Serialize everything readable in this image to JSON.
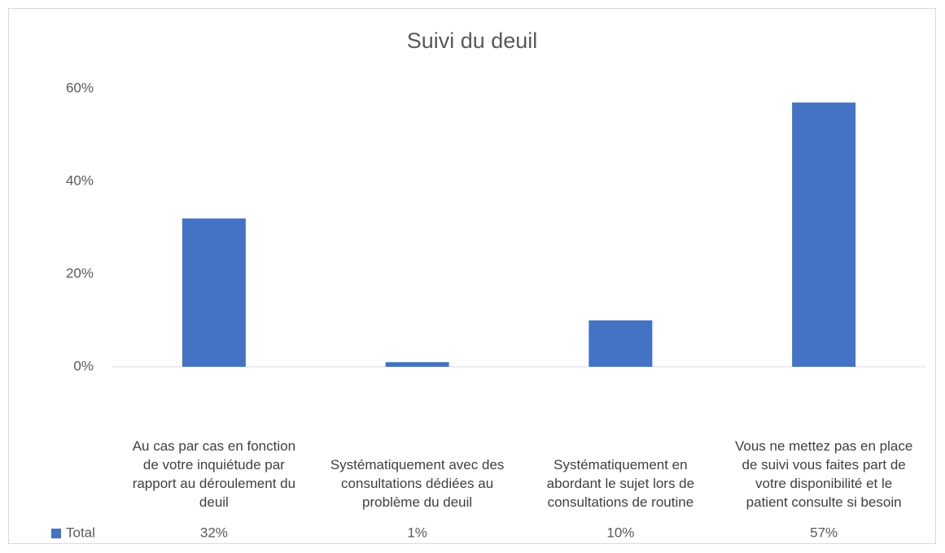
{
  "chart_data": {
    "type": "bar",
    "title": "Suivi du deuil",
    "categories": [
      "Au cas par cas en fonction de votre inquiétude par rapport au déroulement du deuil",
      "Systématiquement avec des consultations dédiées au problème du deuil",
      "Systématiquement en abordant le sujet lors de consultations de routine",
      "Vous ne mettez pas en place de suivi vous faites part de votre disponibilité et le patient consulte si besoin"
    ],
    "series": [
      {
        "name": "Total",
        "color": "#4472c4",
        "values": [
          32,
          1,
          10,
          57
        ],
        "value_labels": [
          "32%",
          "1%",
          "10%",
          "57%"
        ]
      }
    ],
    "ylim": [
      0,
      60
    ],
    "yticks": [
      {
        "value": 0,
        "label": "0%"
      },
      {
        "value": 20,
        "label": "20%"
      },
      {
        "value": 40,
        "label": "40%"
      },
      {
        "value": 60,
        "label": "60%"
      }
    ],
    "grid": false
  }
}
